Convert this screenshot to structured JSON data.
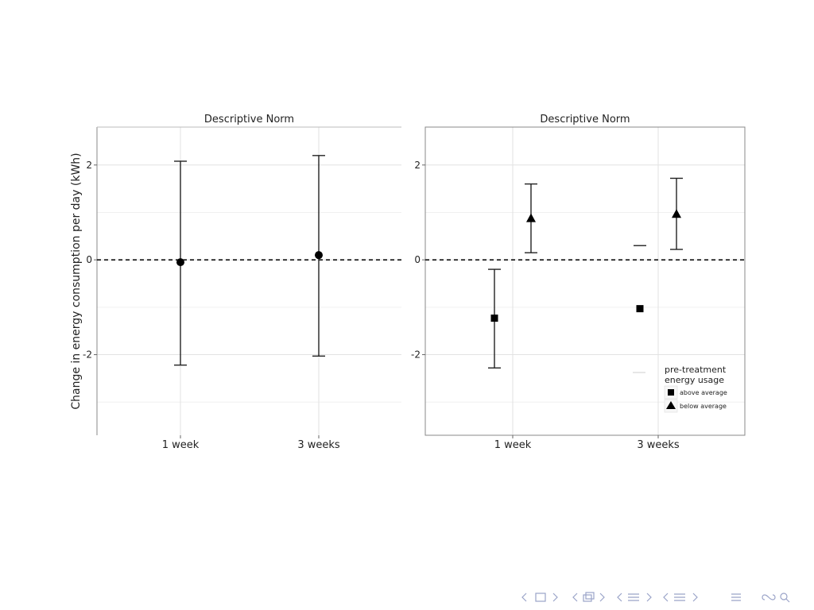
{
  "chart_data": [
    {
      "type": "scatter",
      "title": "Descriptive Norm",
      "ylabel": "Change in energy consumption per day (kWh)",
      "xlabel": "",
      "categories": [
        "1 week",
        "3 weeks"
      ],
      "ylim": [
        -3.7,
        2.8
      ],
      "yticks": [
        -2,
        0,
        2
      ],
      "ytick_labels": [
        "-2",
        "0",
        "2"
      ],
      "reference_line": 0,
      "grid": true,
      "series": [
        {
          "marker": "circle",
          "points": [
            {
              "category": "1 week",
              "y": -0.05,
              "lower": -2.22,
              "upper": 2.08
            },
            {
              "category": "3 weeks",
              "y": 0.1,
              "lower": -2.03,
              "upper": 2.2
            }
          ]
        }
      ]
    },
    {
      "type": "scatter",
      "title": "Descriptive Norm",
      "ylabel": "",
      "xlabel": "",
      "categories": [
        "1 week",
        "3 weeks"
      ],
      "ylim": [
        -3.7,
        2.8
      ],
      "yticks": [
        -2,
        0,
        2
      ],
      "ytick_labels": [
        "-2",
        "0",
        "2"
      ],
      "reference_line": 0,
      "grid": true,
      "legend": {
        "title": "pre-treatment\nenergy usage",
        "position": "bottom-right",
        "entries": [
          "above average",
          "below average"
        ]
      },
      "series": [
        {
          "name": "above average",
          "marker": "square",
          "points": [
            {
              "category": "1 week",
              "y": -1.23,
              "lower": -2.28,
              "upper": -0.2
            },
            {
              "category": "3 weeks",
              "y": -1.03,
              "lower": null,
              "upper": 0.3
            }
          ]
        },
        {
          "name": "below average",
          "marker": "triangle",
          "points": [
            {
              "category": "1 week",
              "y": 0.88,
              "lower": 0.15,
              "upper": 1.6
            },
            {
              "category": "3 weeks",
              "y": 0.97,
              "lower": 0.22,
              "upper": 1.72
            }
          ]
        }
      ]
    }
  ],
  "nav": {
    "icons": [
      "nav-prev-icon",
      "nav-frame-icon",
      "nav-next-icon",
      "nav-subsection-icon",
      "nav-section-icon",
      "nav-align-icon",
      "nav-search-icon"
    ]
  }
}
